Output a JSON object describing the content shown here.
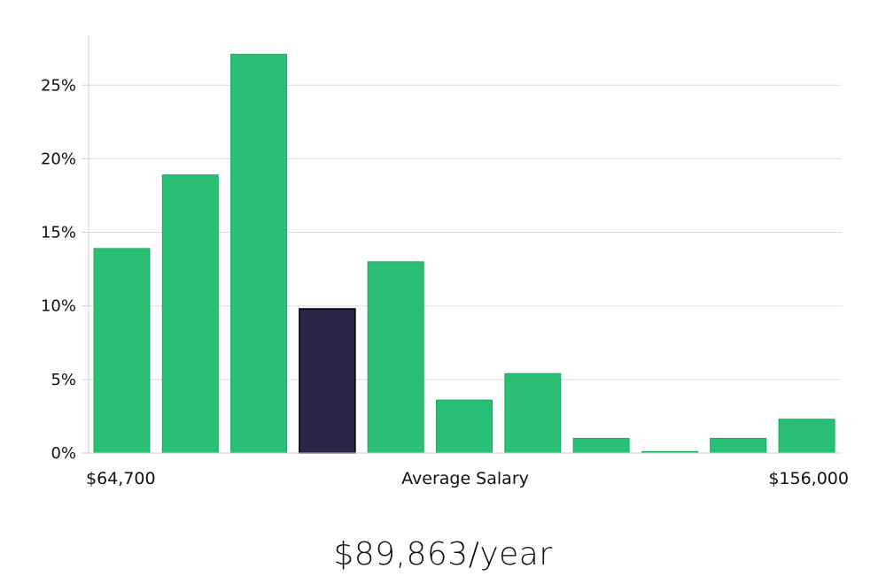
{
  "chart_data": {
    "type": "bar",
    "yticks": [
      "0%",
      "5%",
      "10%",
      "15%",
      "20%",
      "25%"
    ],
    "ylim": [
      0,
      28.5
    ],
    "values": [
      13.9,
      18.9,
      27.1,
      9.8,
      13.0,
      3.6,
      5.4,
      1.0,
      0.1,
      1.0,
      2.3
    ],
    "highlight_index": 3,
    "colors": {
      "bar": "#2abf77",
      "bar_border": "#1fa864",
      "highlight": "#2a2645",
      "highlight_border": "#000000"
    },
    "x_labels": {
      "min": "$64,700",
      "center": "Average Salary",
      "max": "$156,000"
    },
    "grid": true
  },
  "summary": {
    "average": "$89,863/year"
  }
}
